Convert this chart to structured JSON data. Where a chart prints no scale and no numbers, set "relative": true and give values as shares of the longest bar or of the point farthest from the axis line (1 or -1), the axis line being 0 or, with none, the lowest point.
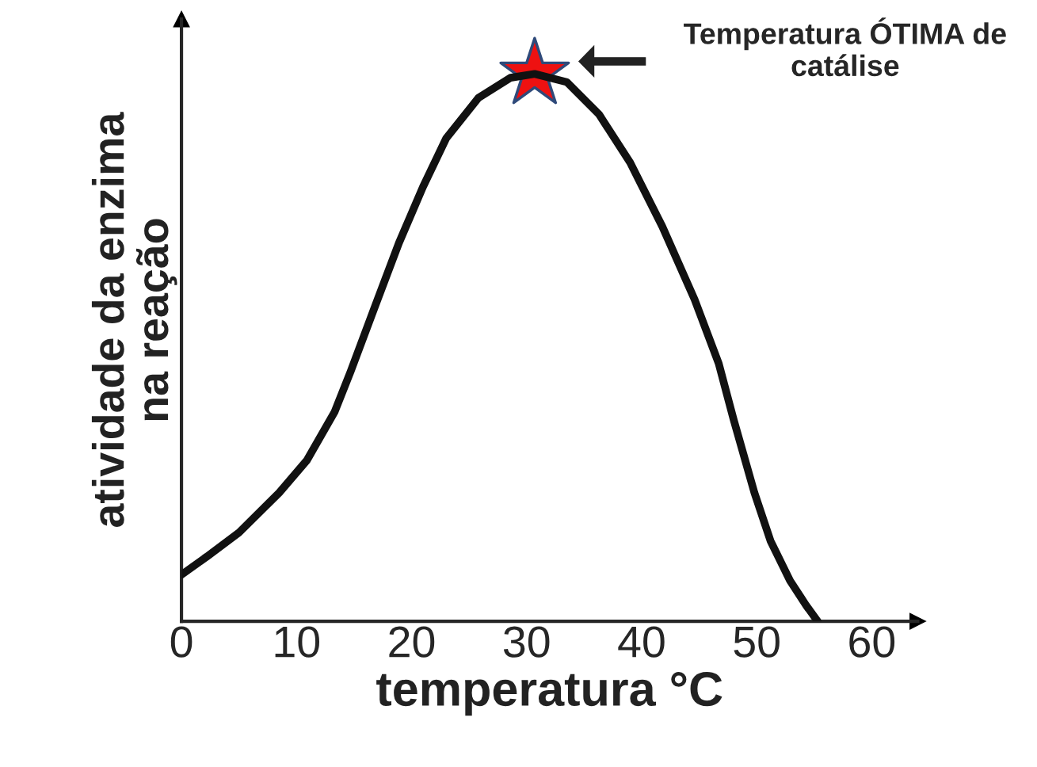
{
  "chart_data": {
    "type": "line",
    "relative": true,
    "xlabel": "temperatura °C",
    "ylabel": "atividade da enzima\nna reação",
    "xlim": [
      0,
      64
    ],
    "xticks": [
      0,
      10,
      20,
      30,
      40,
      50,
      60
    ],
    "tick_labels": "x",
    "grid": false,
    "series": [
      {
        "color": "#111111",
        "x": [
          0,
          2.2,
          5,
          8.5,
          10.9,
          13.3,
          14.7,
          16.8,
          18.9,
          21,
          23,
          25.8,
          28.6,
          30.7,
          33.5,
          36.3,
          39,
          41.8,
          44.6,
          46.7,
          48,
          49.8,
          51.2,
          52.9,
          54.3,
          55.3
        ],
        "values": [
          0.085,
          0.118,
          0.162,
          0.235,
          0.294,
          0.382,
          0.456,
          0.574,
          0.691,
          0.794,
          0.882,
          0.956,
          0.993,
          1,
          0.985,
          0.926,
          0.838,
          0.721,
          0.588,
          0.471,
          0.368,
          0.235,
          0.147,
          0.074,
          0.029,
          0
        ]
      },
      {
        "type": "scatter",
        "color": "#ee1111",
        "marker": "star",
        "x": [
          30.7
        ],
        "values": [
          1
        ]
      }
    ],
    "annotations": [
      "Temperatura ÓTIMA de\ncatálise"
    ]
  }
}
